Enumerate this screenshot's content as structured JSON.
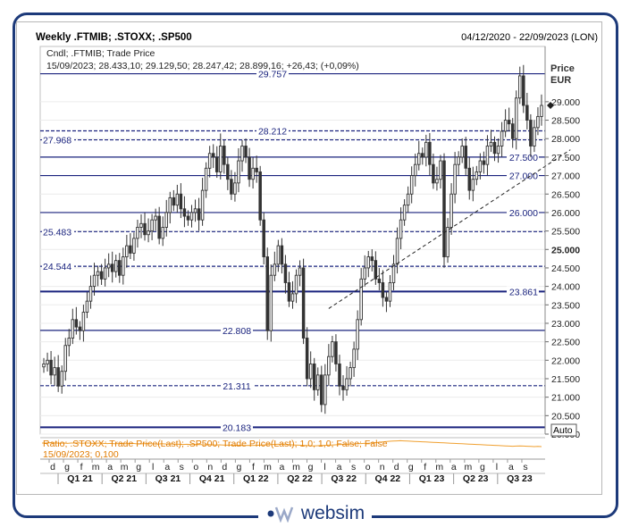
{
  "header": {
    "title": "Weekly .FTMIB; .STOXX; .SP500",
    "date_range": "04/12/2020 - 22/09/2023 (LON)"
  },
  "legend": {
    "line1": "Cndl; .FTMIB; Trade Price",
    "line2": "15/09/2023; 28.433,10; 29.129,50; 28.247,42; 28.899,16; +26,43; (+0,09%)"
  },
  "lower_panel": {
    "line1": "Ratio; .STOXX; Trade Price(Last); .SP500; Trade Price(Last);  1,0; 1,0; False; False",
    "line2": "15/09/2023; 0,100",
    "auto_label": "Auto"
  },
  "logo": {
    "text": "websim"
  },
  "colors": {
    "frame": "#1d3a7a",
    "level": "#1a237e",
    "candle": "#333333",
    "ratio": "#f0a030"
  },
  "chart_data": {
    "type": "candlestick",
    "y_label": "Price",
    "y_unit": "EUR",
    "ylim": [
      20000,
      30400
    ],
    "y_ticks": [
      {
        "v": 29000,
        "label": "29.000"
      },
      {
        "v": 28500,
        "label": "28.500"
      },
      {
        "v": 28000,
        "label": "28.000"
      },
      {
        "v": 27500,
        "label": "27.500"
      },
      {
        "v": 27000,
        "label": "27.000"
      },
      {
        "v": 26500,
        "label": "26.500"
      },
      {
        "v": 26000,
        "label": "26.000"
      },
      {
        "v": 25500,
        "label": "25.500"
      },
      {
        "v": 25000,
        "label": "25.000",
        "bold": true
      },
      {
        "v": 24500,
        "label": "24.500"
      },
      {
        "v": 24000,
        "label": "24.000"
      },
      {
        "v": 23500,
        "label": "23.500"
      },
      {
        "v": 23000,
        "label": "23.000"
      },
      {
        "v": 22500,
        "label": "22.500"
      },
      {
        "v": 22000,
        "label": "22.000"
      },
      {
        "v": 21500,
        "label": "21.500"
      },
      {
        "v": 21000,
        "label": "21.000"
      },
      {
        "v": 20500,
        "label": "20.500"
      },
      {
        "v": 20000,
        "label": "20.000"
      }
    ],
    "levels": [
      {
        "value": 29757,
        "label": "29.757",
        "style": "solid",
        "label_pos": "left-mid"
      },
      {
        "value": 28212,
        "label": "28.212",
        "style": "dashed",
        "label_pos": "left-mid"
      },
      {
        "value": 27968,
        "label": "27.968",
        "style": "dashed",
        "label_pos": "left"
      },
      {
        "value": 27500,
        "label": "27.500",
        "style": "solid",
        "label_pos": "right"
      },
      {
        "value": 27000,
        "label": "27.000",
        "style": "solid",
        "label_pos": "right"
      },
      {
        "value": 26000,
        "label": "26.000",
        "style": "solid",
        "label_pos": "right"
      },
      {
        "value": 25483,
        "label": "25.483",
        "style": "dashed",
        "label_pos": "left"
      },
      {
        "value": 24544,
        "label": "24.544",
        "style": "dashed",
        "label_pos": "left"
      },
      {
        "value": 23861,
        "label": "23.861",
        "style": "thick",
        "label_pos": "right"
      },
      {
        "value": 22808,
        "label": "22.808",
        "style": "solid",
        "label_pos": "mid"
      },
      {
        "value": 21311,
        "label": "21.311",
        "style": "dashed",
        "label_pos": "mid"
      },
      {
        "value": 20183,
        "label": "20.183",
        "style": "thick",
        "label_pos": "mid"
      }
    ],
    "trendline": {
      "from": {
        "week": 79,
        "value": 23400
      },
      "to": {
        "week": 146,
        "value": 27700
      }
    },
    "month_labels": [
      "d",
      "g",
      "f",
      "m",
      "a",
      "m",
      "g",
      "l",
      "a",
      "s",
      "o",
      "n",
      "d",
      "g",
      "f",
      "m",
      "a",
      "m",
      "g",
      "l",
      "a",
      "s",
      "o",
      "n",
      "d",
      "g",
      "f",
      "m",
      "a",
      "m",
      "g",
      "l",
      "a",
      "s"
    ],
    "quarter_labels": [
      "Q1 21",
      "Q2 21",
      "Q3 21",
      "Q4 21",
      "Q1 22",
      "Q2 22",
      "Q3 22",
      "Q4 22",
      "Q1 23",
      "Q2 23",
      "Q3 23"
    ],
    "closes": [
      21900,
      22000,
      21600,
      21800,
      21300,
      21700,
      22400,
      22600,
      23100,
      22900,
      22800,
      23300,
      23600,
      24000,
      24300,
      24400,
      24200,
      24500,
      24600,
      24400,
      24700,
      24300,
      24800,
      25100,
      24900,
      25300,
      25600,
      25700,
      25400,
      25500,
      25800,
      25900,
      25300,
      25600,
      26000,
      26400,
      26200,
      26500,
      26100,
      25900,
      25800,
      26000,
      26100,
      25800,
      26600,
      27200,
      27600,
      27500,
      27100,
      27800,
      27300,
      26900,
      26500,
      26800,
      27400,
      27800,
      27500,
      26900,
      27200,
      27100,
      25800,
      24800,
      22800,
      24300,
      24600,
      25100,
      24600,
      24100,
      23600,
      23800,
      24300,
      24500,
      22600,
      21500,
      21900,
      21200,
      21600,
      20800,
      21600,
      22100,
      22500,
      21900,
      21300,
      21200,
      21500,
      21800,
      22300,
      23100,
      24200,
      24500,
      24800,
      24700,
      24200,
      24100,
      23700,
      23600,
      24100,
      24600,
      25300,
      25800,
      26200,
      26500,
      27000,
      27300,
      27600,
      27500,
      27900,
      27300,
      26800,
      26900,
      27400,
      24800,
      25600,
      26500,
      27300,
      27500,
      27800,
      27200,
      26600,
      26900,
      27100,
      27400,
      27300,
      27800,
      27900,
      27600,
      27800,
      28200,
      28500,
      28400,
      28000,
      29100,
      29700,
      28900,
      28500,
      27800,
      28300,
      28600,
      28900
    ],
    "ratio": {
      "ylim": [
        0.0,
        0.2
      ],
      "values": [
        0.15,
        0.15,
        0.155,
        0.15,
        0.15,
        0.148,
        0.15,
        0.145,
        0.15,
        0.15,
        0.152,
        0.148,
        0.15,
        0.15,
        0.145,
        0.148,
        0.15,
        0.145,
        0.142,
        0.145,
        0.14,
        0.142,
        0.145,
        0.14,
        0.142,
        0.145,
        0.14,
        0.138,
        0.14,
        0.142,
        0.14,
        0.138,
        0.135,
        0.14,
        0.138,
        0.135,
        0.138,
        0.135,
        0.132,
        0.13,
        0.132,
        0.13,
        0.128,
        0.13,
        0.128,
        0.125,
        0.128,
        0.125,
        0.122,
        0.125,
        0.122,
        0.12,
        0.122,
        0.118,
        0.12,
        0.118,
        0.115,
        0.118,
        0.115,
        0.118,
        0.12,
        0.122,
        0.125,
        0.128,
        0.13,
        0.132,
        0.135,
        0.13,
        0.128,
        0.125,
        0.122,
        0.12,
        0.118,
        0.115,
        0.112,
        0.11,
        0.112,
        0.115,
        0.118,
        0.12,
        0.122,
        0.125,
        0.128,
        0.13,
        0.132,
        0.135,
        0.138,
        0.14,
        0.142,
        0.145,
        0.148,
        0.15,
        0.155,
        0.16,
        0.165,
        0.17,
        0.175,
        0.178,
        0.18,
        0.182,
        0.18,
        0.178,
        0.175,
        0.172,
        0.17,
        0.168,
        0.165,
        0.162,
        0.16,
        0.158,
        0.155,
        0.152,
        0.15,
        0.148,
        0.145,
        0.142,
        0.14,
        0.138,
        0.135,
        0.132,
        0.13,
        0.128,
        0.125,
        0.122,
        0.12,
        0.118,
        0.115,
        0.112,
        0.11,
        0.108,
        0.105,
        0.108,
        0.11,
        0.108,
        0.105,
        0.102,
        0.1,
        0.102,
        0.1
      ]
    }
  }
}
